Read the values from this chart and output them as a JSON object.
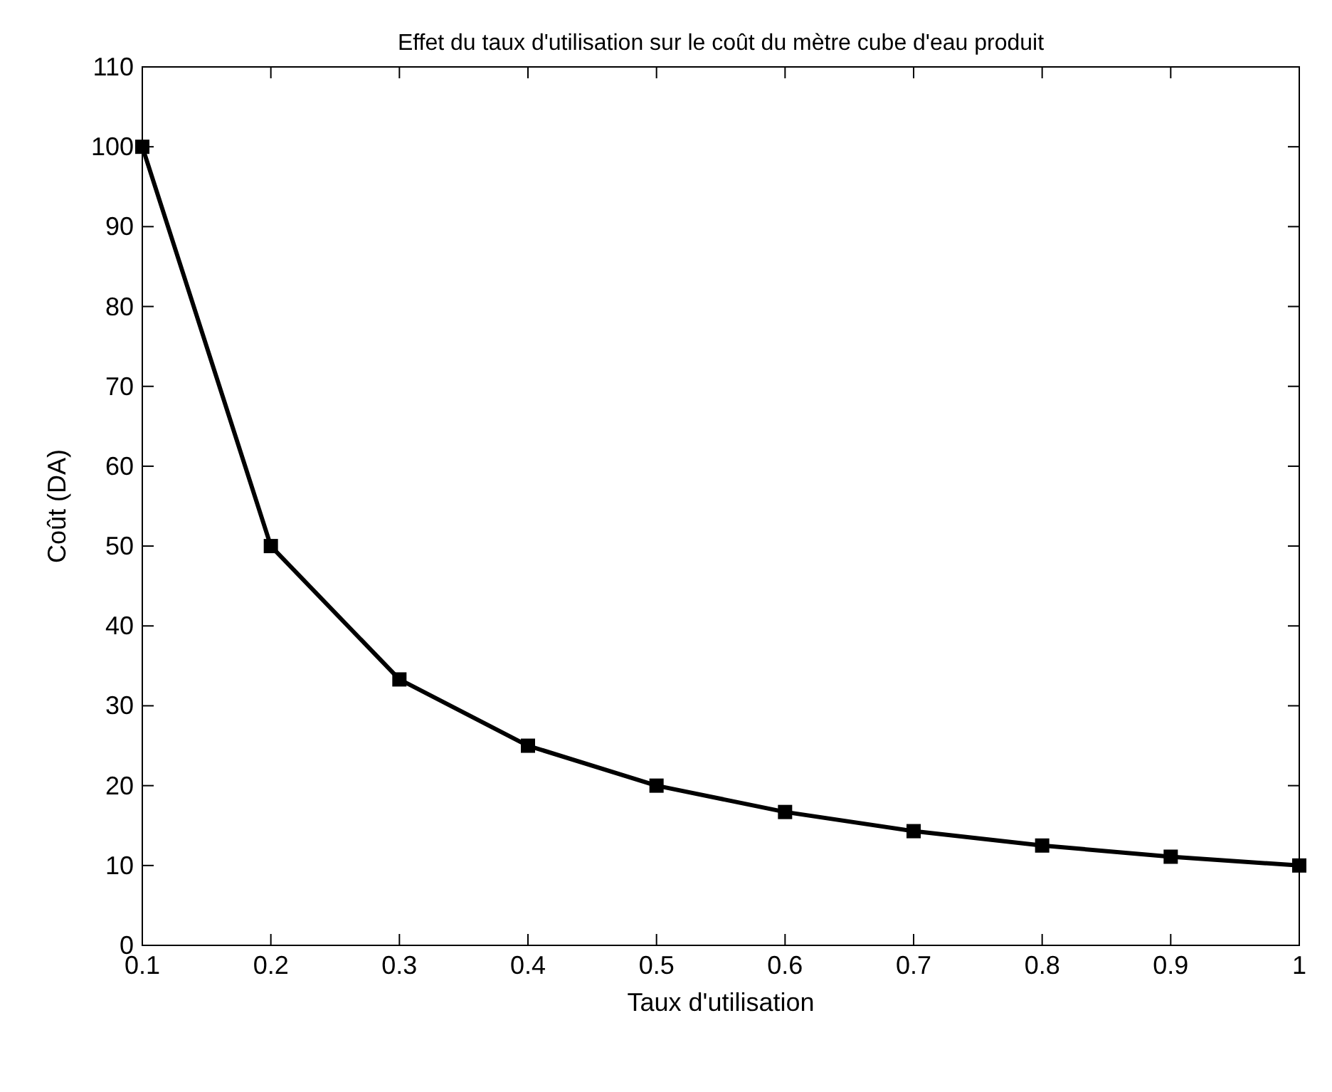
{
  "chart_data": {
    "type": "line",
    "title": "Effet du taux d'utilisation sur le coût du mètre cube d'eau produit",
    "xlabel": "Taux d'utilisation",
    "ylabel": "Coût (DA)",
    "x": [
      0.1,
      0.2,
      0.3,
      0.4,
      0.5,
      0.6,
      0.7,
      0.8,
      0.9,
      1
    ],
    "series": [
      {
        "color": "#000000",
        "values": [
          100,
          50,
          33.3,
          25,
          20,
          16.7,
          14.3,
          12.5,
          11.1,
          10
        ]
      }
    ],
    "xlim": [
      0.1,
      1
    ],
    "xticks": [
      0.1,
      0.2,
      0.3,
      0.4,
      0.5,
      0.6,
      0.7,
      0.8,
      0.9,
      1
    ],
    "ylim": [
      0,
      110
    ],
    "yticks": [
      0,
      10,
      20,
      30,
      40,
      50,
      60,
      70,
      80,
      90,
      100,
      110
    ],
    "marker": "square",
    "line_style": "solid"
  }
}
